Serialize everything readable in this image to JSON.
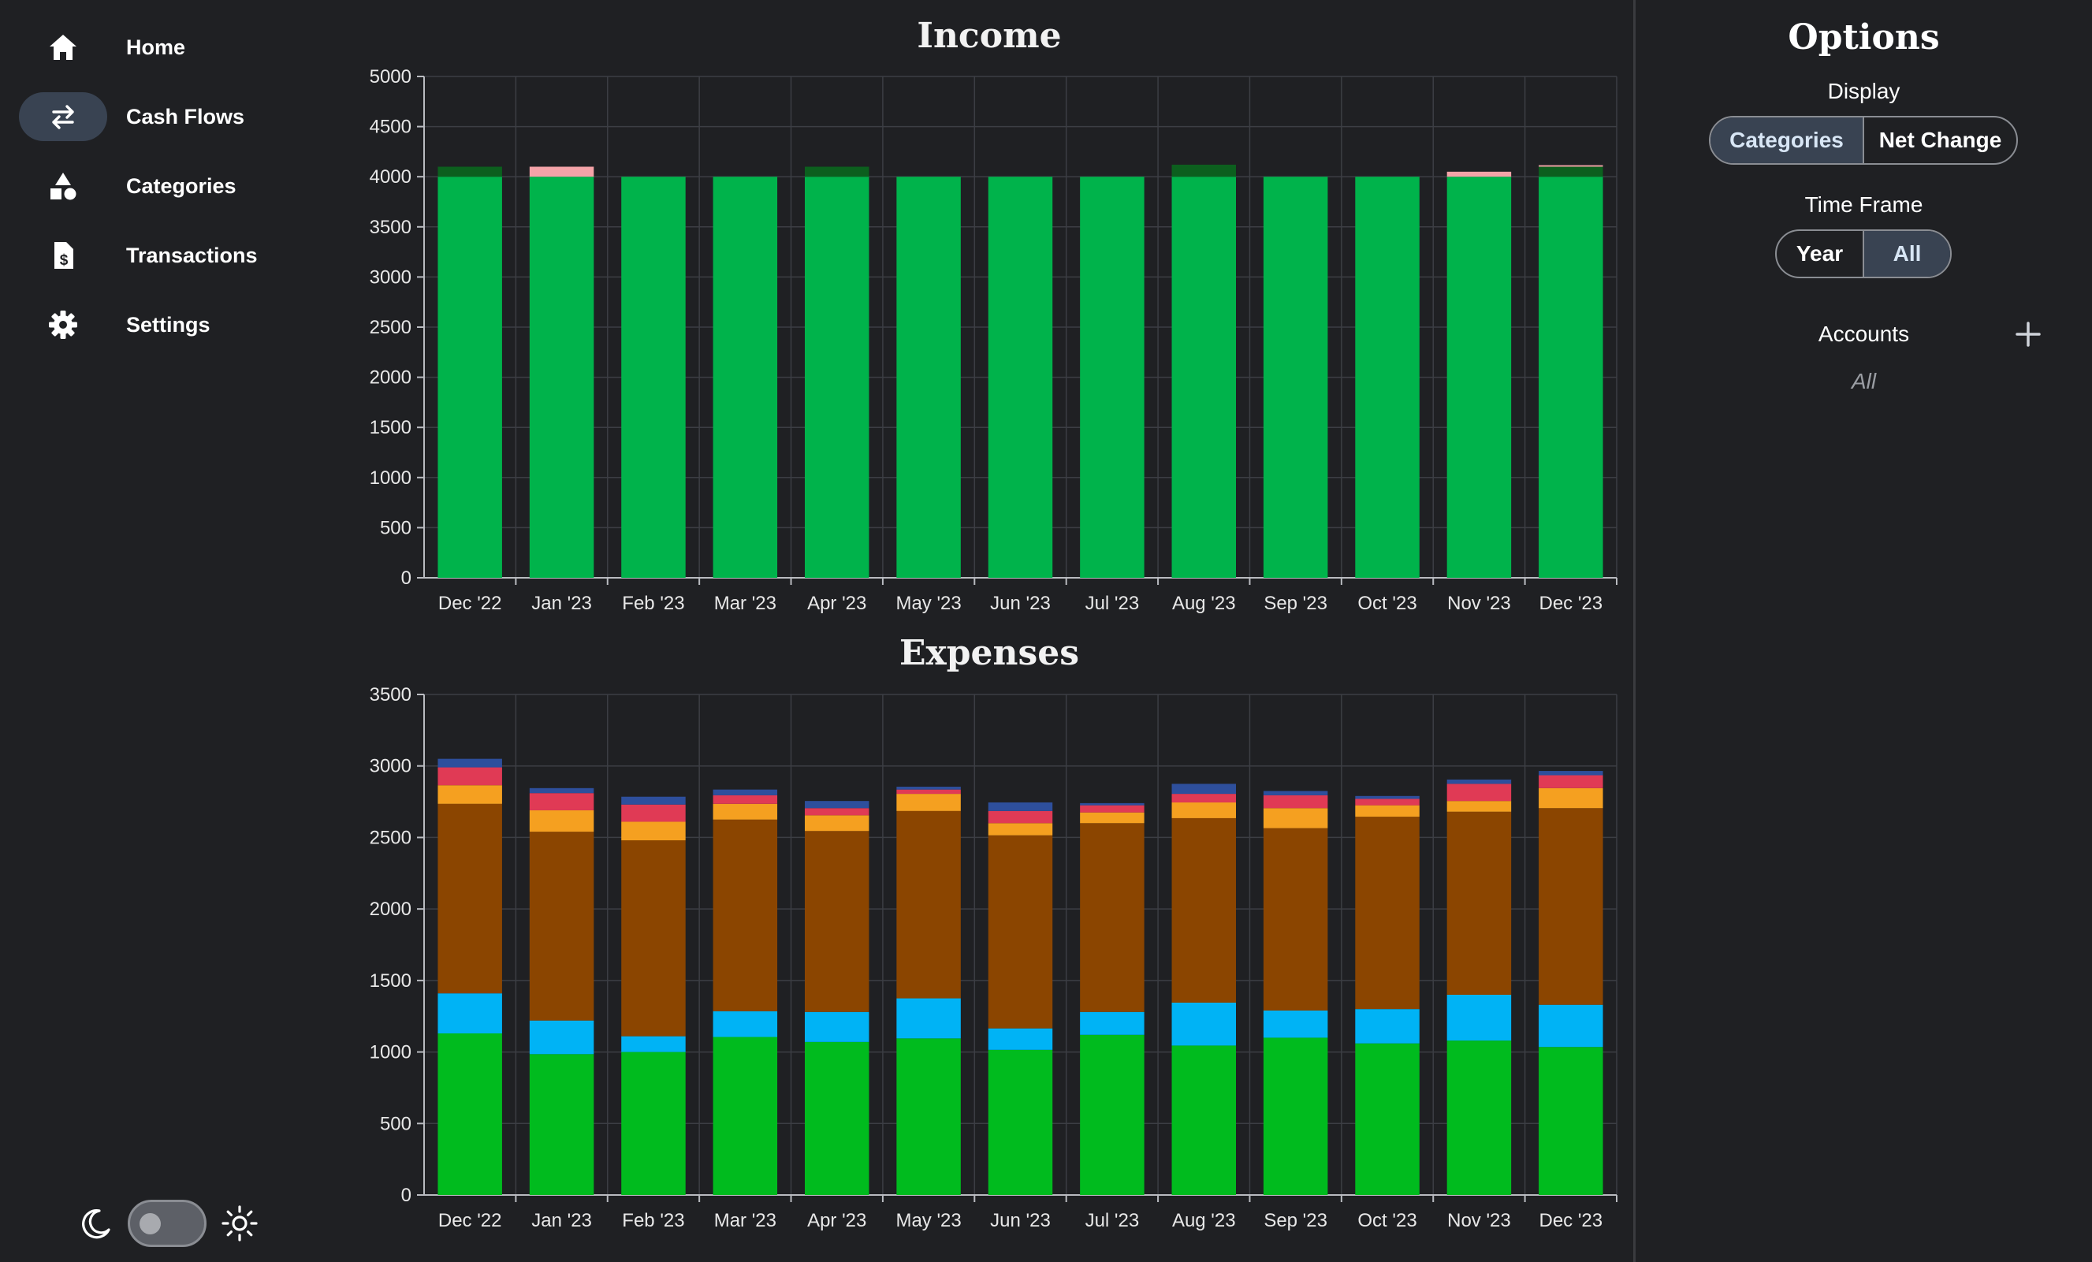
{
  "nav": {
    "items": [
      {
        "label": "Home",
        "icon": "home-icon"
      },
      {
        "label": "Cash Flows",
        "icon": "swap-arrows-icon"
      },
      {
        "label": "Categories",
        "icon": "shapes-icon"
      },
      {
        "label": "Transactions",
        "icon": "dollar-document-icon"
      },
      {
        "label": "Settings",
        "icon": "gear-icon"
      }
    ],
    "active": "Cash Flows"
  },
  "theme": {
    "mode": "dark",
    "dark_icon": "moon-icon",
    "light_icon": "sun-icon"
  },
  "options": {
    "title": "Options",
    "display_label": "Display",
    "display_options": [
      "Categories",
      "Net Change"
    ],
    "display_selected": "Categories",
    "timeframe_label": "Time Frame",
    "timeframe_options": [
      "Year",
      "All"
    ],
    "timeframe_selected": "All",
    "accounts_label": "Accounts",
    "accounts_value": "All",
    "add_icon": "plus-icon"
  },
  "colors": {
    "background": "#1f2023",
    "accent": "#394352",
    "income_main": "#00b34b",
    "income_dark": "#0c5f1e",
    "income_pink": "#f4a3a8",
    "exp_green": "#00bb1e",
    "exp_blue": "#00b3f5",
    "exp_brown": "#8b4500",
    "exp_orange": "#f5a020",
    "exp_red": "#e03a55",
    "exp_navy": "#2e4f9c"
  },
  "chart_data": [
    {
      "type": "bar",
      "title": "Income",
      "stacked": true,
      "categories": [
        "Dec '22",
        "Jan '23",
        "Feb '23",
        "Mar '23",
        "Apr '23",
        "May '23",
        "Jun '23",
        "Jul '23",
        "Aug '23",
        "Sep '23",
        "Oct '23",
        "Nov '23",
        "Dec '23"
      ],
      "ylim": [
        0,
        5000
      ],
      "yticks": [
        0,
        500,
        1000,
        1500,
        2000,
        2500,
        3000,
        3500,
        4000,
        4500,
        5000
      ],
      "grid": true,
      "series": [
        {
          "color": "#00b34b",
          "values": [
            4000,
            4000,
            4000,
            4000,
            4000,
            4000,
            4000,
            4000,
            4000,
            4000,
            4000,
            4000,
            4000
          ]
        },
        {
          "color": "#0c5f1e",
          "values": [
            100,
            0,
            0,
            0,
            100,
            0,
            0,
            0,
            120,
            0,
            0,
            0,
            100
          ]
        },
        {
          "color": "#f4a3a8",
          "values": [
            0,
            100,
            0,
            0,
            0,
            0,
            0,
            0,
            0,
            0,
            0,
            50,
            15
          ]
        }
      ]
    },
    {
      "type": "bar",
      "title": "Expenses",
      "stacked": true,
      "categories": [
        "Dec '22",
        "Jan '23",
        "Feb '23",
        "Mar '23",
        "Apr '23",
        "May '23",
        "Jun '23",
        "Jul '23",
        "Aug '23",
        "Sep '23",
        "Oct '23",
        "Nov '23",
        "Dec '23"
      ],
      "ylim": [
        0,
        3500
      ],
      "yticks": [
        0,
        500,
        1000,
        1500,
        2000,
        2500,
        3000,
        3500
      ],
      "grid": true,
      "series": [
        {
          "color": "#00bb1e",
          "values": [
            1130,
            985,
            1000,
            1105,
            1070,
            1095,
            1015,
            1120,
            1045,
            1100,
            1060,
            1080,
            1035
          ]
        },
        {
          "color": "#00b3f5",
          "values": [
            280,
            235,
            110,
            180,
            210,
            280,
            150,
            160,
            300,
            190,
            240,
            320,
            295
          ]
        },
        {
          "color": "#8b4500",
          "values": [
            1325,
            1320,
            1370,
            1340,
            1265,
            1310,
            1350,
            1320,
            1290,
            1275,
            1345,
            1280,
            1375
          ]
        },
        {
          "color": "#f5a020",
          "values": [
            130,
            150,
            130,
            110,
            110,
            120,
            85,
            75,
            110,
            140,
            80,
            75,
            140
          ]
        },
        {
          "color": "#e03a55",
          "values": [
            125,
            120,
            120,
            60,
            50,
            30,
            85,
            50,
            60,
            90,
            45,
            120,
            90
          ]
        },
        {
          "color": "#2e4f9c",
          "values": [
            60,
            35,
            55,
            40,
            50,
            20,
            60,
            15,
            70,
            30,
            20,
            30,
            30
          ]
        }
      ]
    }
  ]
}
